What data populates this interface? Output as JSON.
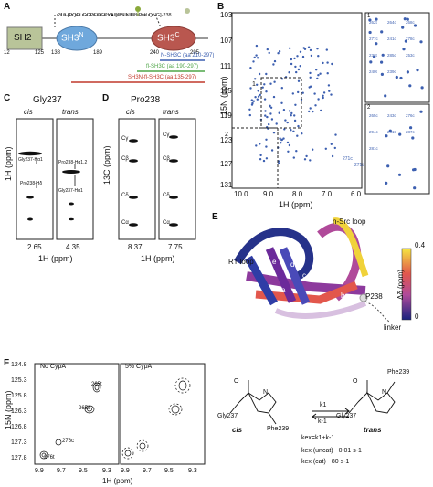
{
  "panels": {
    "A": "A",
    "B": "B",
    "C": "C",
    "D": "D",
    "E": "E",
    "F": "F"
  },
  "panelA": {
    "domains": {
      "sh2": "SH2",
      "sh3n": "SH3",
      "sh3n_sup": "N",
      "sh3c": "SH3",
      "sh3c_sup": "C"
    },
    "positions": [
      "12",
      "125",
      "138",
      "189",
      "240",
      "295"
    ],
    "sequence": "210-[PQPLGGPEPGPYAQPSINTPLPNLQNG]-238",
    "constructs": [
      "N-SH3C (aa 210-297)",
      "fl-SH3C (aa 190-297)",
      "SH3N-fl-SH3C (aa 135-297)"
    ],
    "colors": {
      "sh2": "#b9c499",
      "sh3n": "#6fa8dc",
      "sh3c": "#b9574f",
      "blue": "#3c5fb0",
      "green": "#4fa548",
      "red": "#c0392b"
    }
  },
  "panelB": {
    "ylabel": "15N (ppm)",
    "xlabel": "1H (ppm)",
    "yticks": [
      "103",
      "107",
      "111",
      "115",
      "119",
      "123",
      "127",
      "131"
    ],
    "xticks": [
      "10.0",
      "9.0",
      "8.0",
      "7.0",
      "6.0"
    ],
    "box_labels": [
      "1",
      "2"
    ],
    "inset1_labels": [
      "262t",
      "264c",
      "268c",
      "277c",
      "241c",
      "278c",
      "233t",
      "285c",
      "253c",
      "240t",
      "239c"
    ],
    "inset2_labels": [
      "265c",
      "243c",
      "276c",
      "294c",
      "261t",
      "287c",
      "281c"
    ],
    "main_labels": [
      "271c",
      "271t"
    ]
  },
  "panelC": {
    "title": "Gly237",
    "cis": "cis",
    "trans": "trans",
    "ylabel": "1H (ppm)",
    "annotations": [
      "Gly237-Hα1",
      "Pro238-Hδ",
      "Pro238-Hα1,2",
      "Gly237-Hα1"
    ],
    "xvals": [
      "2.65",
      "4.35"
    ],
    "xlabel": "1H (ppm)"
  },
  "panelD": {
    "title": "Pro238",
    "cis": "cis",
    "trans": "trans",
    "ylabel": "13C (ppm)",
    "atoms_cis": [
      "Cγ",
      "Cβ",
      "Cδ",
      "Cα"
    ],
    "atoms_trans": [
      "Cγ",
      "Cβ",
      "Cδ",
      "Cα"
    ],
    "xvals": [
      "8.37",
      "7.75"
    ],
    "xlabel": "1H (ppm)"
  },
  "panelE": {
    "labels": {
      "nsrc": "n-Src loop",
      "rt": "RT loop",
      "linker": "linker",
      "p238": "P238"
    },
    "strands": [
      "a",
      "b",
      "c",
      "d",
      "e"
    ],
    "cbar_label": "Δδ (ppm)",
    "cbar_top": "0.4",
    "cbar_bottom": "0"
  },
  "panelF": {
    "ylabel": "15N (ppm)",
    "xlabel": "1H (ppm)",
    "yticks": [
      "124.8",
      "125.3",
      "125.8",
      "126.3",
      "126.8",
      "127.3",
      "127.8"
    ],
    "xticks_left": [
      "9.9",
      "9.7",
      "9.5",
      "9.3"
    ],
    "xticks_right": [
      "9.9",
      "9.7",
      "9.5",
      "9.3"
    ],
    "left_title": "No CypA",
    "right_title": "5% CypA",
    "peaks": [
      "265t",
      "265c",
      "276t",
      "276c"
    ],
    "scheme": {
      "left_res": "Phe239",
      "right_res": "Phe239",
      "left_gly": "Gly237",
      "right_gly": "Gly237",
      "cis": "cis",
      "trans": "trans",
      "k1": "k1",
      "km1": "k-1",
      "kex": "kex=k1+k-1",
      "uncat": "kex (uncat) ~0.01 s-1",
      "cat": "kex (cat) ~80 s-1"
    }
  }
}
